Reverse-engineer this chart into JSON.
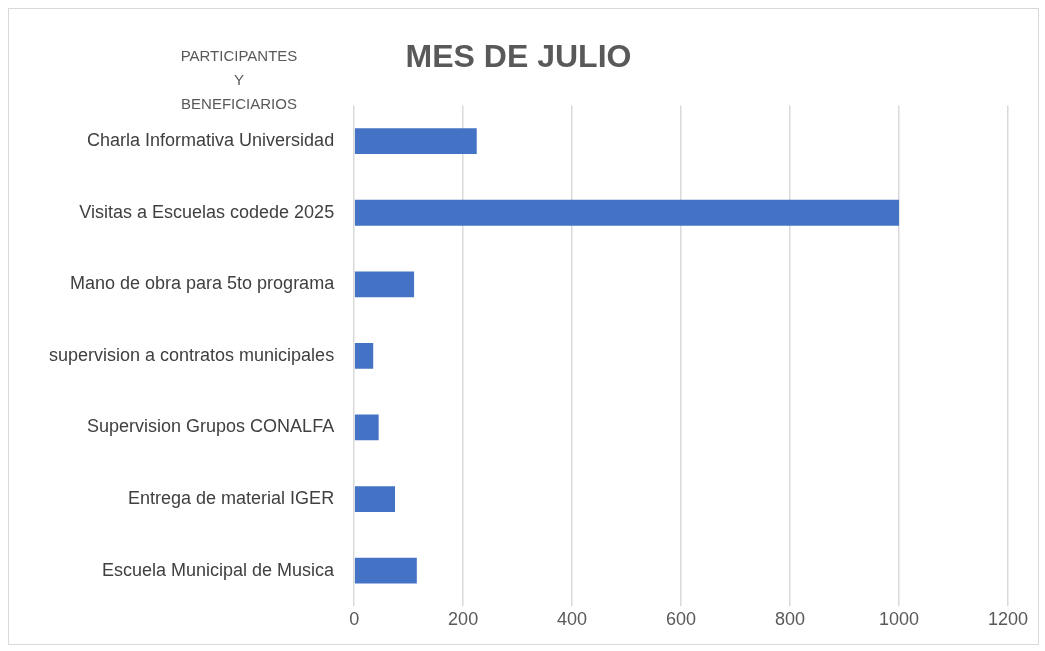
{
  "chart_data": {
    "type": "bar",
    "orientation": "horizontal",
    "title": "MES DE JULIO",
    "ylabel": "PARTICIPANTES Y BENEFICIARIOS",
    "categories": [
      "Charla Informativa Universidad",
      "Visitas a Escuelas codede 2025",
      "Mano de obra para 5to programa",
      "supervision a contratos municipales",
      "Supervision Grupos CONALFA",
      "Entrega de material IGER",
      "Escuela Municipal de Musica"
    ],
    "values": [
      225,
      1000,
      110,
      35,
      45,
      75,
      115
    ],
    "color": "#4472c4",
    "xlim": [
      0,
      1200
    ],
    "xticks": [
      0,
      200,
      400,
      600,
      800,
      1000,
      1200
    ],
    "grid": "x",
    "legend": false
  }
}
